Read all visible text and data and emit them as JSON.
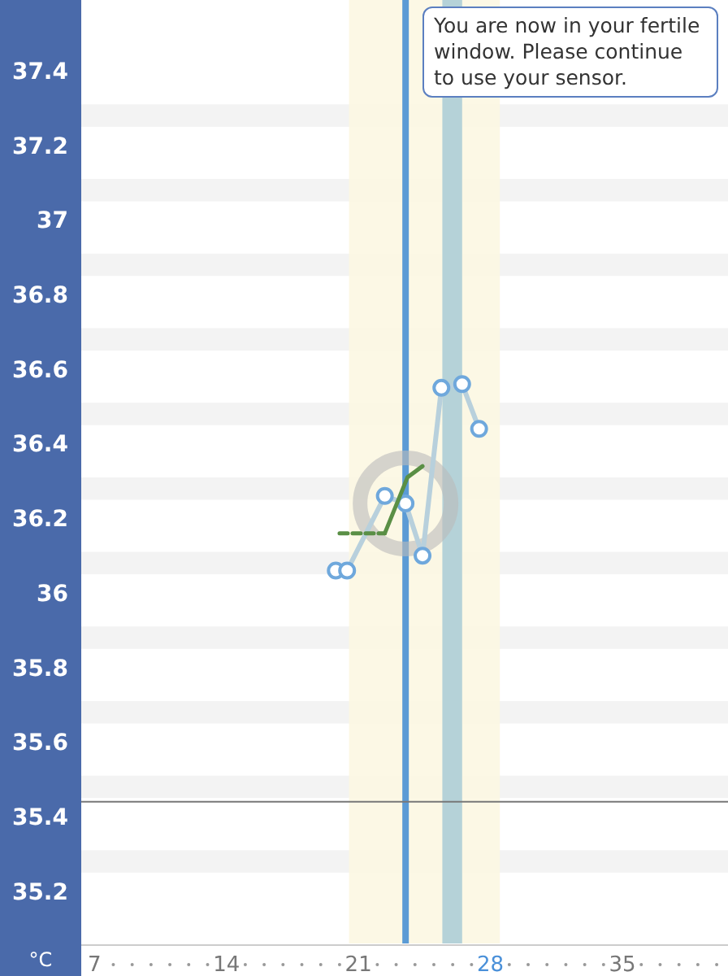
{
  "chart_data": {
    "type": "line",
    "ylabel": "°C",
    "xlim": [
      6.3,
      40.6
    ],
    "ylim": [
      35.06,
      37.59
    ],
    "xticks": [
      7,
      14,
      21,
      28,
      35
    ],
    "yticks": [
      35.2,
      35.4,
      35.6,
      35.8,
      36,
      36.2,
      36.4,
      36.6,
      36.8,
      37,
      37.2,
      37.4
    ],
    "series": [
      {
        "color": "#6fa8dc",
        "x": [
          19.8,
          20.4,
          22.4,
          23.5,
          24.4,
          25.4,
          26.5,
          27.4
        ],
        "values": [
          36.06,
          36.06,
          36.26,
          36.24,
          36.1,
          36.55,
          36.56,
          36.44
        ],
        "marker": "circle"
      },
      {
        "color": "#5a8f45",
        "x": [
          20,
          22.4
        ],
        "values": [
          36.16,
          36.16
        ],
        "line_style": "dashed",
        "marker": "none"
      },
      {
        "color": "#5a8f45",
        "x": [
          22.4,
          23.6,
          24.4
        ],
        "values": [
          36.16,
          36.31,
          36.34
        ],
        "line_style": "solid",
        "marker": "none"
      }
    ],
    "bands": [
      {
        "axis": "y",
        "from": 37.25,
        "to": 37.31,
        "color": "#f3f3f3"
      },
      {
        "axis": "y",
        "from": 37.05,
        "to": 37.11,
        "color": "#f3f3f3"
      },
      {
        "axis": "y",
        "from": 36.85,
        "to": 36.91,
        "color": "#f3f3f3"
      },
      {
        "axis": "y",
        "from": 36.65,
        "to": 36.71,
        "color": "#f3f3f3"
      },
      {
        "axis": "y",
        "from": 36.45,
        "to": 36.51,
        "color": "#f3f3f3"
      },
      {
        "axis": "y",
        "from": 36.25,
        "to": 36.31,
        "color": "#f3f3f3"
      },
      {
        "axis": "y",
        "from": 36.05,
        "to": 36.11,
        "color": "#f3f3f3"
      },
      {
        "axis": "y",
        "from": 35.85,
        "to": 35.91,
        "color": "#f3f3f3"
      },
      {
        "axis": "y",
        "from": 35.65,
        "to": 35.71,
        "color": "#f3f3f3"
      },
      {
        "axis": "y",
        "from": 35.45,
        "to": 35.51,
        "color": "#f3f3f3"
      },
      {
        "axis": "y",
        "from": 35.25,
        "to": 35.31,
        "color": "#f3f3f3"
      },
      {
        "axis": "x",
        "from": 20.5,
        "to": 28.5,
        "color": "#fbf7e1"
      },
      {
        "axis": "x",
        "from": 25.45,
        "to": 26.5,
        "color": "#a8cbd6"
      }
    ],
    "ref_lines": [
      {
        "axis": "x",
        "value": 23.5,
        "color": "#5b9bd5"
      },
      {
        "axis": "y",
        "value": 35.44,
        "color": "#777777"
      }
    ],
    "annotations": [
      "You are now in your fertile window. Please continue to use your sensor."
    ]
  }
}
